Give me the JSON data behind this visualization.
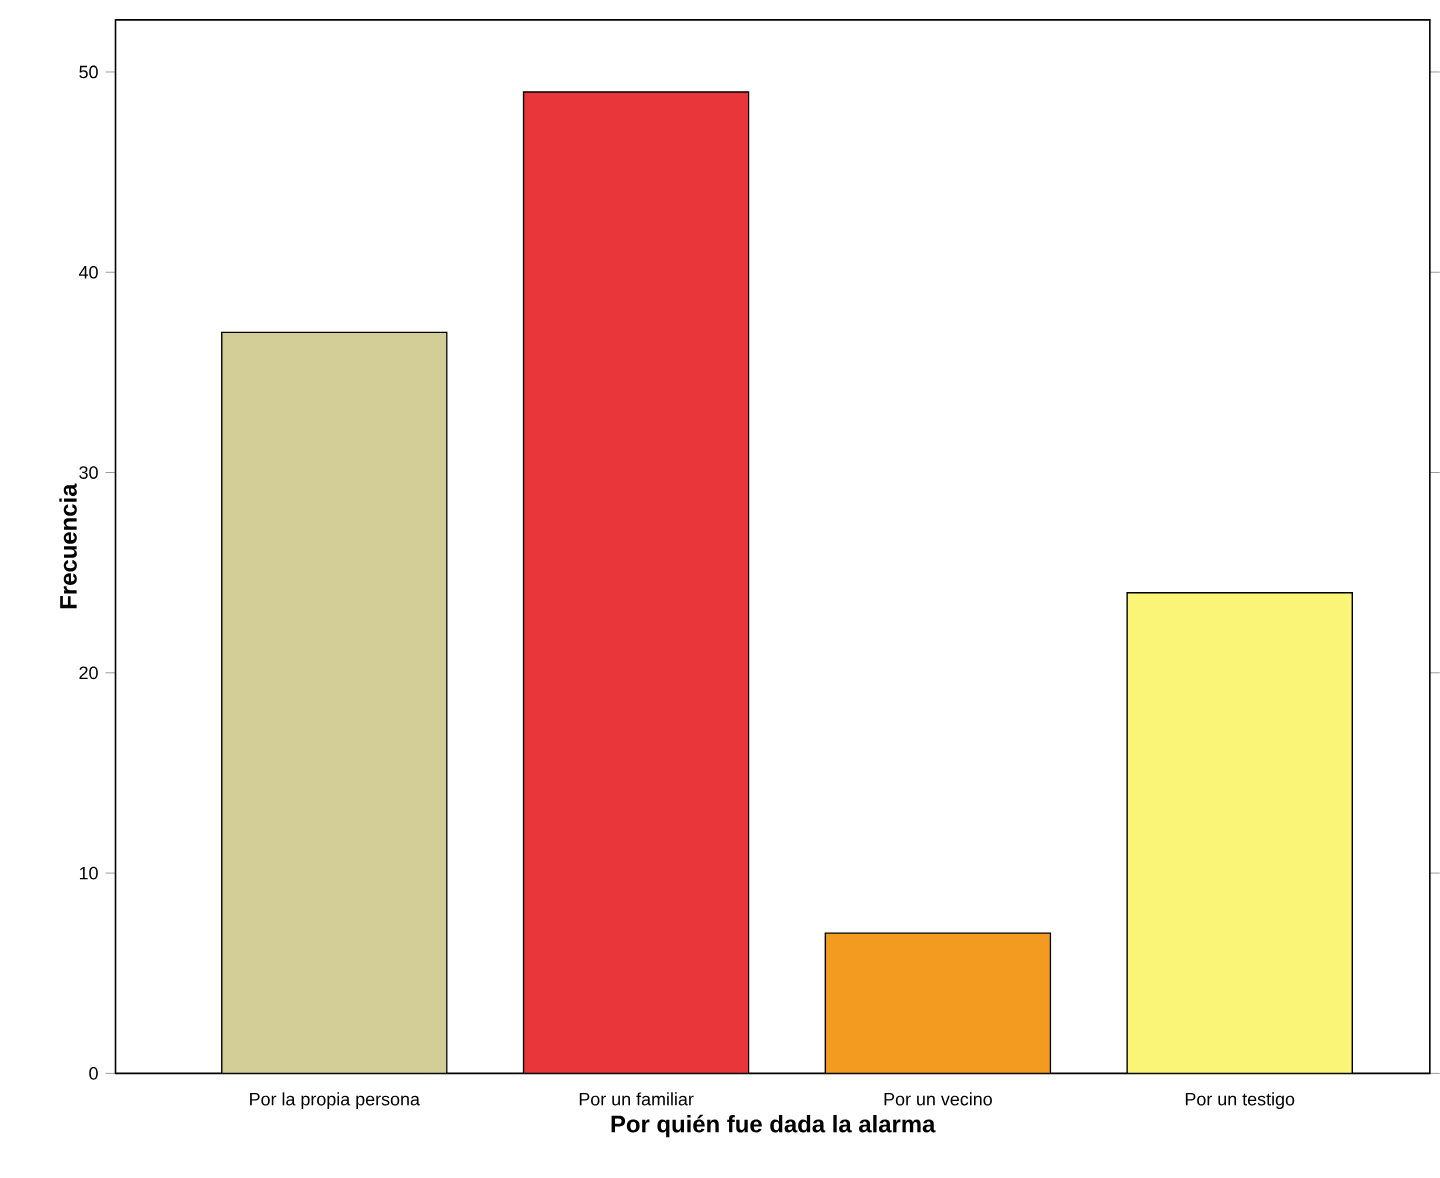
{
  "chart_data": {
    "type": "bar",
    "xlabel": "Por quién fue dada la alarma",
    "ylabel": "Frecuencia",
    "categories": [
      "Por la propia persona",
      "Por un familiar",
      "Por un vecino",
      "Por un testigo"
    ],
    "values": [
      37,
      49,
      7,
      24
    ],
    "colors": [
      "#d3cd98",
      "#e8363a",
      "#f39b20",
      "#faf577"
    ],
    "ylim": [
      0,
      52.6
    ],
    "yticks": [
      0,
      10,
      20,
      30,
      40,
      50
    ]
  }
}
